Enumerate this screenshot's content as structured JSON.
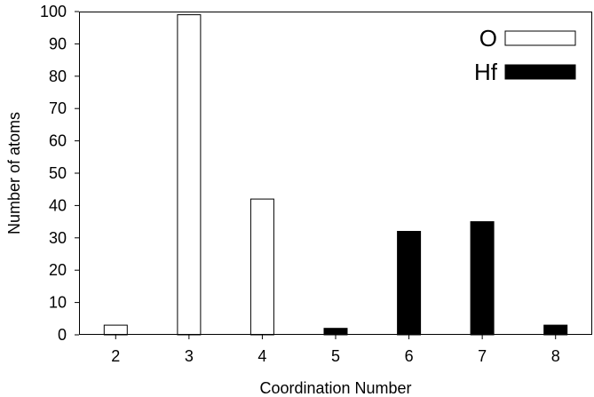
{
  "chart_data": {
    "type": "bar",
    "title": "",
    "xlabel": "Coordination Number",
    "ylabel": "Number of atoms",
    "categories": [
      "2",
      "3",
      "4",
      "5",
      "6",
      "7",
      "8"
    ],
    "ylim": [
      0,
      100
    ],
    "yticks": [
      "0",
      "10",
      "20",
      "30",
      "40",
      "50",
      "60",
      "70",
      "80",
      "90",
      "100"
    ],
    "grid": false,
    "legend_position": "top-right",
    "series": [
      {
        "name": "O",
        "fill": "#ffffff",
        "stroke": "#000000",
        "values": [
          3,
          99,
          42,
          0,
          0,
          0,
          0
        ]
      },
      {
        "name": "Hf",
        "fill": "#000000",
        "stroke": "#000000",
        "values": [
          0,
          0,
          0,
          2,
          32,
          35,
          3
        ]
      }
    ]
  }
}
